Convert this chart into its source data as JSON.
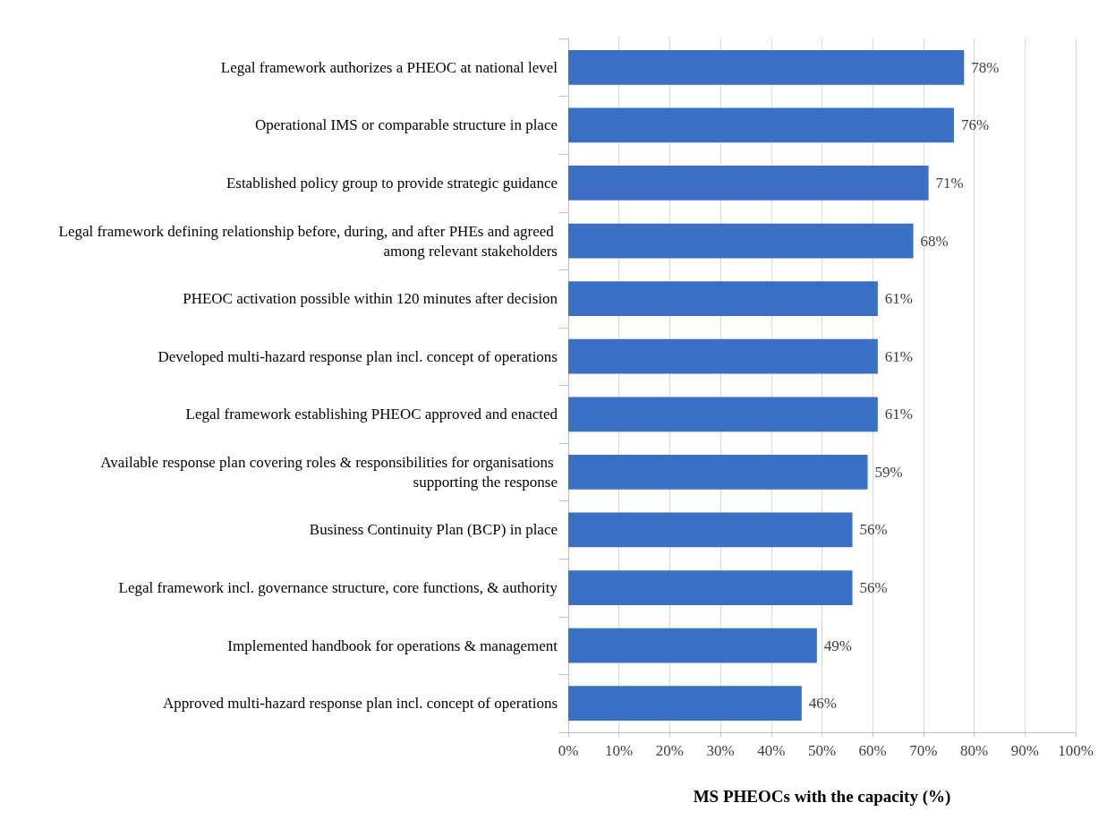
{
  "chart_data": {
    "type": "bar",
    "orientation": "horizontal",
    "xlabel": "MS PHEOCs with the capacity (%)",
    "categories": [
      "Legal framework authorizes a PHEOC at national level",
      "Operational IMS or comparable structure in place",
      "Established policy group to provide strategic guidance",
      "Legal framework defining relationship before, during, and after PHEs and agreed among relevant stakeholders",
      "PHEOC activation possible within 120 minutes after decision",
      "Developed multi-hazard response plan incl. concept of operations",
      "Legal framework establishing PHEOC approved and enacted",
      "Available response plan covering roles & responsibilities for organisations supporting the response",
      "Business Continuity Plan (BCP) in place",
      "Legal framework incl. governance structure, core functions, & authority",
      "Implemented handbook for operations & management",
      "Approved multi-hazard response plan incl. concept of operations"
    ],
    "values": [
      78,
      76,
      71,
      68,
      61,
      61,
      61,
      59,
      56,
      56,
      49,
      46
    ],
    "value_labels": [
      "78%",
      "76%",
      "71%",
      "68%",
      "61%",
      "61%",
      "61%",
      "59%",
      "56%",
      "56%",
      "49%",
      "46%"
    ],
    "color": "#3b6fc6",
    "xlim": [
      0,
      100
    ],
    "xticks": [
      {
        "value": 0,
        "label": "0%"
      },
      {
        "value": 10,
        "label": "10%"
      },
      {
        "value": 20,
        "label": "20%"
      },
      {
        "value": 30,
        "label": "30%"
      },
      {
        "value": 40,
        "label": "40%"
      },
      {
        "value": 50,
        "label": "50%"
      },
      {
        "value": 60,
        "label": "60%"
      },
      {
        "value": 70,
        "label": "70%"
      },
      {
        "value": 80,
        "label": "80%"
      },
      {
        "value": 90,
        "label": "90%"
      },
      {
        "value": 100,
        "label": "100%"
      }
    ],
    "grid": "x"
  }
}
